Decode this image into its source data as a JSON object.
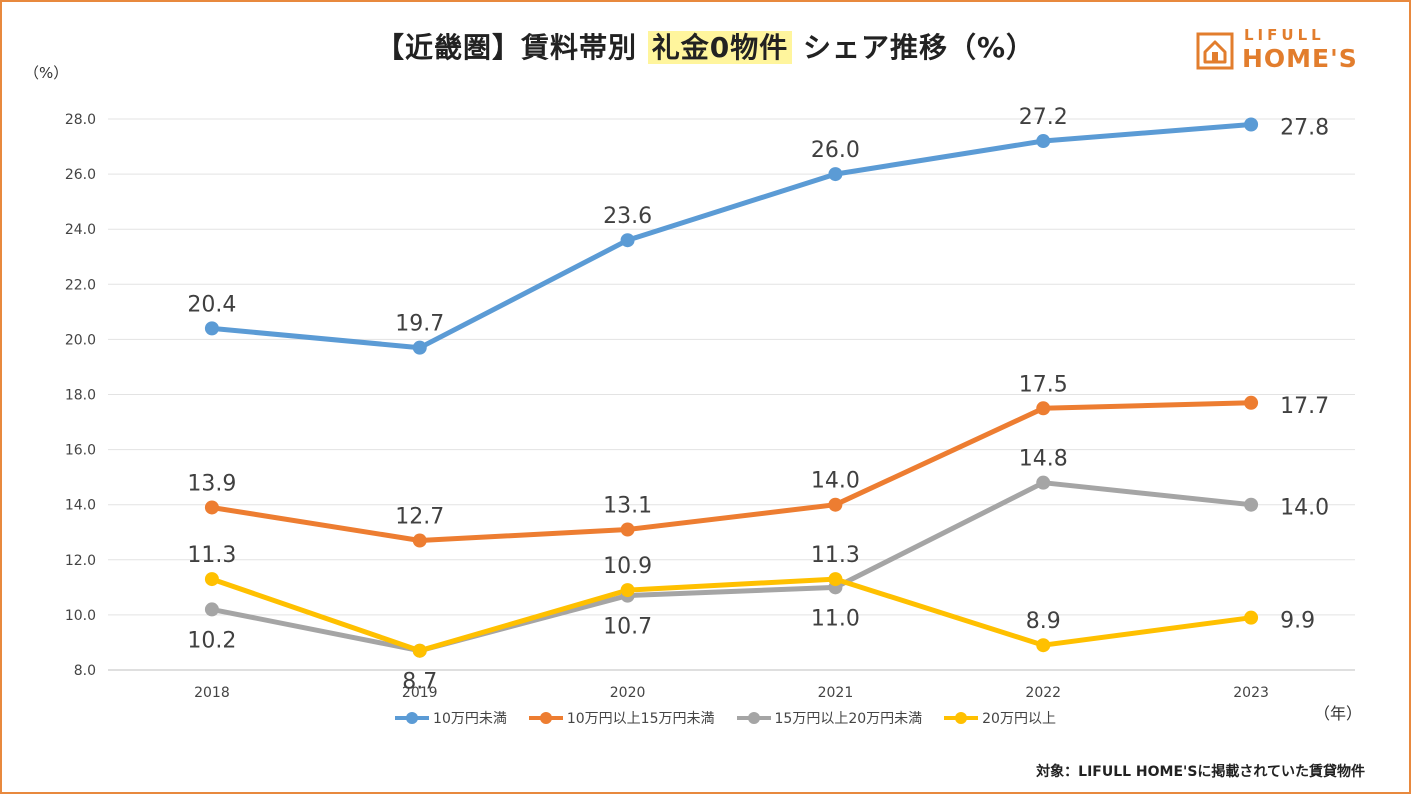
{
  "header": {
    "title_before": "【近畿圏】賃料帯別 ",
    "title_highlight": "礼金0物件",
    "title_after": " シェア推移（%）"
  },
  "logo": {
    "line1": "LIFULL",
    "line2": "HOME'S",
    "icon": "house-icon"
  },
  "footer": {
    "note": "対象：LIFULL HOME'Sに掲載されていた賃貸物件"
  },
  "colors": {
    "accent": "#E8893E",
    "highlight": "#FFF59D",
    "series": [
      "#5B9BD5",
      "#ED7D31",
      "#A5A5A5",
      "#FFC000"
    ]
  },
  "chart_data": {
    "type": "line",
    "title": "【近畿圏】賃料帯別 礼金0物件 シェア推移（%）",
    "ylabel": "（%）",
    "xlabel": "（年）",
    "categories": [
      "2018",
      "2019",
      "2020",
      "2021",
      "2022",
      "2023"
    ],
    "ylim": [
      8.0,
      28.0
    ],
    "yticks": [
      "8.0",
      "10.0",
      "12.0",
      "14.0",
      "16.0",
      "18.0",
      "20.0",
      "22.0",
      "24.0",
      "26.0",
      "28.0"
    ],
    "grid": true,
    "legend_position": "bottom",
    "series": [
      {
        "name": "10万円未満",
        "values": [
          20.4,
          19.7,
          23.6,
          26.0,
          27.2,
          27.8
        ],
        "labels": [
          "20.4",
          "19.7",
          "23.6",
          "26.0",
          "27.2",
          "27.8"
        ]
      },
      {
        "name": "10万円以上15万円未満",
        "values": [
          13.9,
          12.7,
          13.1,
          14.0,
          17.5,
          17.7
        ],
        "labels": [
          "13.9",
          "12.7",
          "13.1",
          "14.0",
          "17.5",
          "17.7"
        ]
      },
      {
        "name": "15万円以上20万円未満",
        "values": [
          10.2,
          8.7,
          10.7,
          11.0,
          14.8,
          14.0
        ],
        "labels": [
          "10.2",
          "8.7",
          "10.7",
          "11.0",
          "14.8",
          "14.0"
        ]
      },
      {
        "name": "20万円以上",
        "values": [
          11.3,
          8.7,
          10.9,
          11.3,
          8.9,
          9.9
        ],
        "labels": [
          "11.3",
          "",
          "10.9",
          "11.3",
          "8.9",
          "9.9"
        ]
      }
    ]
  }
}
